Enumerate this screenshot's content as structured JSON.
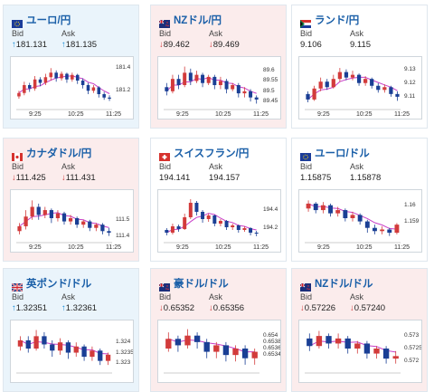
{
  "colors": {
    "up_bg": "#eaf4fb",
    "down_bg": "#fbecec",
    "flat_bg": "#ffffff",
    "title": "#1a5fa8",
    "up_arrow": "#1a8fd8",
    "down_arrow": "#d23b3b",
    "bull": "#d23b3b",
    "bear": "#1a3f95",
    "ma": "#c83fc8",
    "ma2": "#3fa3e0"
  },
  "cards": [
    {
      "title": "ユーロ/円",
      "flag": "eu-flag-icon",
      "trend": "up",
      "bid_label": "Bid",
      "ask_label": "Ask",
      "bid_arrow": "↑",
      "ask_arrow": "↑",
      "bid": "181.131",
      "ask": "181.135",
      "x_ticks": [
        "9:25",
        "10:25",
        "11:25"
      ],
      "y_ticks": [
        "181.4",
        "181.2"
      ],
      "candles": [
        {
          "o": 181.15,
          "c": 181.18,
          "h": 181.2,
          "l": 181.13
        },
        {
          "o": 181.18,
          "c": 181.25,
          "h": 181.28,
          "l": 181.16
        },
        {
          "o": 181.25,
          "c": 181.22,
          "h": 181.27,
          "l": 181.19
        },
        {
          "o": 181.22,
          "c": 181.3,
          "h": 181.33,
          "l": 181.2
        },
        {
          "o": 181.3,
          "c": 181.27,
          "h": 181.32,
          "l": 181.24
        },
        {
          "o": 181.27,
          "c": 181.32,
          "h": 181.35,
          "l": 181.25
        },
        {
          "o": 181.32,
          "c": 181.36,
          "h": 181.4,
          "l": 181.29
        },
        {
          "o": 181.36,
          "c": 181.31,
          "h": 181.38,
          "l": 181.28
        },
        {
          "o": 181.31,
          "c": 181.35,
          "h": 181.37,
          "l": 181.29
        },
        {
          "o": 181.35,
          "c": 181.3,
          "h": 181.36,
          "l": 181.27
        },
        {
          "o": 181.3,
          "c": 181.34,
          "h": 181.36,
          "l": 181.28
        },
        {
          "o": 181.34,
          "c": 181.29,
          "h": 181.35,
          "l": 181.26
        },
        {
          "o": 181.29,
          "c": 181.25,
          "h": 181.31,
          "l": 181.22
        },
        {
          "o": 181.25,
          "c": 181.2,
          "h": 181.27,
          "l": 181.17
        },
        {
          "o": 181.2,
          "c": 181.23,
          "h": 181.25,
          "l": 181.18
        },
        {
          "o": 181.23,
          "c": 181.17,
          "h": 181.24,
          "l": 181.14
        },
        {
          "o": 181.17,
          "c": 181.14,
          "h": 181.19,
          "l": 181.12
        },
        {
          "o": 181.14,
          "c": 181.13,
          "h": 181.16,
          "l": 181.11
        }
      ],
      "ylim": [
        181.05,
        181.45
      ]
    },
    {
      "title": "NZドル/円",
      "flag": "nz-flag-icon",
      "trend": "down",
      "bid_label": "Bid",
      "ask_label": "Ask",
      "bid_arrow": "↓",
      "ask_arrow": "↓",
      "bid": "89.462",
      "ask": "89.469",
      "x_ticks": [
        "9:25",
        "10:25",
        "11:25"
      ],
      "y_ticks": [
        "89.6",
        "89.55",
        "89.5",
        "89.45"
      ],
      "candles": [
        {
          "o": 89.52,
          "c": 89.5,
          "h": 89.54,
          "l": 89.48
        },
        {
          "o": 89.5,
          "c": 89.56,
          "h": 89.58,
          "l": 89.49
        },
        {
          "o": 89.56,
          "c": 89.53,
          "h": 89.58,
          "l": 89.51
        },
        {
          "o": 89.53,
          "c": 89.59,
          "h": 89.62,
          "l": 89.52
        },
        {
          "o": 89.59,
          "c": 89.55,
          "h": 89.61,
          "l": 89.53
        },
        {
          "o": 89.55,
          "c": 89.58,
          "h": 89.6,
          "l": 89.54
        },
        {
          "o": 89.58,
          "c": 89.54,
          "h": 89.59,
          "l": 89.52
        },
        {
          "o": 89.54,
          "c": 89.57,
          "h": 89.58,
          "l": 89.53
        },
        {
          "o": 89.57,
          "c": 89.53,
          "h": 89.58,
          "l": 89.51
        },
        {
          "o": 89.53,
          "c": 89.55,
          "h": 89.57,
          "l": 89.51
        },
        {
          "o": 89.55,
          "c": 89.51,
          "h": 89.56,
          "l": 89.49
        },
        {
          "o": 89.51,
          "c": 89.53,
          "h": 89.54,
          "l": 89.5
        },
        {
          "o": 89.53,
          "c": 89.49,
          "h": 89.54,
          "l": 89.47
        },
        {
          "o": 89.49,
          "c": 89.5,
          "h": 89.52,
          "l": 89.47
        },
        {
          "o": 89.5,
          "c": 89.47,
          "h": 89.51,
          "l": 89.45
        },
        {
          "o": 89.47,
          "c": 89.46,
          "h": 89.48,
          "l": 89.44
        }
      ],
      "ylim": [
        89.42,
        89.64
      ]
    },
    {
      "title": "ランド/円",
      "flag": "za-flag-icon",
      "trend": "flat",
      "bid_label": "Bid",
      "ask_label": "Ask",
      "bid_arrow": "",
      "ask_arrow": "",
      "bid": "9.106",
      "ask": "9.115",
      "x_ticks": [
        "9:25",
        "10:25",
        "11:25"
      ],
      "y_ticks": [
        "9.13",
        "9.12",
        "9.11"
      ],
      "candles": [
        {
          "o": 9.112,
          "c": 9.108,
          "h": 9.114,
          "l": 9.106
        },
        {
          "o": 9.108,
          "c": 9.116,
          "h": 9.118,
          "l": 9.107
        },
        {
          "o": 9.116,
          "c": 9.121,
          "h": 9.124,
          "l": 9.114
        },
        {
          "o": 9.121,
          "c": 9.117,
          "h": 9.123,
          "l": 9.115
        },
        {
          "o": 9.117,
          "c": 9.123,
          "h": 9.126,
          "l": 9.116
        },
        {
          "o": 9.123,
          "c": 9.128,
          "h": 9.131,
          "l": 9.121
        },
        {
          "o": 9.128,
          "c": 9.124,
          "h": 9.13,
          "l": 9.122
        },
        {
          "o": 9.124,
          "c": 9.126,
          "h": 9.129,
          "l": 9.122
        },
        {
          "o": 9.126,
          "c": 9.12,
          "h": 9.127,
          "l": 9.118
        },
        {
          "o": 9.12,
          "c": 9.123,
          "h": 9.125,
          "l": 9.118
        },
        {
          "o": 9.123,
          "c": 9.118,
          "h": 9.124,
          "l": 9.116
        },
        {
          "o": 9.118,
          "c": 9.115,
          "h": 9.12,
          "l": 9.113
        },
        {
          "o": 9.115,
          "c": 9.117,
          "h": 9.119,
          "l": 9.113
        },
        {
          "o": 9.117,
          "c": 9.112,
          "h": 9.118,
          "l": 9.11
        },
        {
          "o": 9.112,
          "c": 9.11,
          "h": 9.114,
          "l": 9.107
        }
      ],
      "ylim": [
        9.102,
        9.135
      ]
    },
    {
      "title": "カナダドル/円",
      "flag": "ca-flag-icon",
      "trend": "down",
      "bid_label": "Bid",
      "ask_label": "Ask",
      "bid_arrow": "↓",
      "ask_arrow": "↓",
      "bid": "111.425",
      "ask": "111.431",
      "x_ticks": [
        "9:25",
        "10:25",
        "11:25"
      ],
      "y_ticks": [
        "111.5",
        "111.4"
      ],
      "candles": [
        {
          "o": 111.43,
          "c": 111.46,
          "h": 111.48,
          "l": 111.41
        },
        {
          "o": 111.46,
          "c": 111.52,
          "h": 111.56,
          "l": 111.44
        },
        {
          "o": 111.52,
          "c": 111.58,
          "h": 111.62,
          "l": 111.5
        },
        {
          "o": 111.58,
          "c": 111.53,
          "h": 111.6,
          "l": 111.5
        },
        {
          "o": 111.53,
          "c": 111.56,
          "h": 111.58,
          "l": 111.51
        },
        {
          "o": 111.56,
          "c": 111.51,
          "h": 111.57,
          "l": 111.48
        },
        {
          "o": 111.51,
          "c": 111.54,
          "h": 111.56,
          "l": 111.49
        },
        {
          "o": 111.54,
          "c": 111.49,
          "h": 111.55,
          "l": 111.47
        },
        {
          "o": 111.49,
          "c": 111.51,
          "h": 111.53,
          "l": 111.47
        },
        {
          "o": 111.51,
          "c": 111.47,
          "h": 111.52,
          "l": 111.45
        },
        {
          "o": 111.47,
          "c": 111.49,
          "h": 111.5,
          "l": 111.45
        },
        {
          "o": 111.49,
          "c": 111.45,
          "h": 111.5,
          "l": 111.43
        },
        {
          "o": 111.45,
          "c": 111.47,
          "h": 111.48,
          "l": 111.43
        },
        {
          "o": 111.47,
          "c": 111.43,
          "h": 111.48,
          "l": 111.41
        },
        {
          "o": 111.43,
          "c": 111.42,
          "h": 111.45,
          "l": 111.4
        }
      ],
      "ylim": [
        111.37,
        111.65
      ]
    },
    {
      "title": "スイスフラン/円",
      "flag": "ch-flag-icon",
      "trend": "flat",
      "bid_label": "Bid",
      "ask_label": "Ask",
      "bid_arrow": "",
      "ask_arrow": "",
      "bid": "194.141",
      "ask": "194.157",
      "x_ticks": [
        "9:25",
        "10:25",
        "11:25"
      ],
      "y_ticks": [
        "194.4",
        "194.2"
      ],
      "candles": [
        {
          "o": 194.18,
          "c": 194.15,
          "h": 194.2,
          "l": 194.12
        },
        {
          "o": 194.15,
          "c": 194.22,
          "h": 194.25,
          "l": 194.13
        },
        {
          "o": 194.22,
          "c": 194.19,
          "h": 194.24,
          "l": 194.16
        },
        {
          "o": 194.19,
          "c": 194.32,
          "h": 194.36,
          "l": 194.18
        },
        {
          "o": 194.32,
          "c": 194.48,
          "h": 194.52,
          "l": 194.3
        },
        {
          "o": 194.48,
          "c": 194.38,
          "h": 194.5,
          "l": 194.34
        },
        {
          "o": 194.38,
          "c": 194.3,
          "h": 194.4,
          "l": 194.26
        },
        {
          "o": 194.3,
          "c": 194.34,
          "h": 194.36,
          "l": 194.27
        },
        {
          "o": 194.34,
          "c": 194.25,
          "h": 194.35,
          "l": 194.22
        },
        {
          "o": 194.25,
          "c": 194.28,
          "h": 194.3,
          "l": 194.22
        },
        {
          "o": 194.28,
          "c": 194.21,
          "h": 194.29,
          "l": 194.18
        },
        {
          "o": 194.21,
          "c": 194.23,
          "h": 194.25,
          "l": 194.18
        },
        {
          "o": 194.23,
          "c": 194.18,
          "h": 194.24,
          "l": 194.15
        },
        {
          "o": 194.18,
          "c": 194.2,
          "h": 194.22,
          "l": 194.16
        },
        {
          "o": 194.2,
          "c": 194.15,
          "h": 194.21,
          "l": 194.12
        },
        {
          "o": 194.15,
          "c": 194.14,
          "h": 194.17,
          "l": 194.11
        }
      ],
      "ylim": [
        194.06,
        194.56
      ]
    },
    {
      "title": "ユーロ/ドル",
      "flag": "eu-flag-icon",
      "trend": "flat",
      "bid_label": "Bid",
      "ask_label": "Ask",
      "bid_arrow": "",
      "ask_arrow": "",
      "bid": "1.15875",
      "ask": "1.15878",
      "x_ticks": [
        "9:25",
        "10:25",
        "11:25"
      ],
      "y_ticks": [
        "1.16",
        "1.159"
      ],
      "candles": [
        {
          "o": 1.1598,
          "c": 1.1601,
          "h": 1.1603,
          "l": 1.1596
        },
        {
          "o": 1.1601,
          "c": 1.1597,
          "h": 1.1602,
          "l": 1.1595
        },
        {
          "o": 1.1597,
          "c": 1.16,
          "h": 1.1602,
          "l": 1.1595
        },
        {
          "o": 1.16,
          "c": 1.1595,
          "h": 1.1601,
          "l": 1.1593
        },
        {
          "o": 1.1595,
          "c": 1.1597,
          "h": 1.1599,
          "l": 1.1593
        },
        {
          "o": 1.1597,
          "c": 1.1592,
          "h": 1.1598,
          "l": 1.159
        },
        {
          "o": 1.1592,
          "c": 1.1594,
          "h": 1.1596,
          "l": 1.159
        },
        {
          "o": 1.1594,
          "c": 1.159,
          "h": 1.1595,
          "l": 1.1588
        },
        {
          "o": 1.159,
          "c": 1.1586,
          "h": 1.1591,
          "l": 1.1583
        },
        {
          "o": 1.1586,
          "c": 1.1584,
          "h": 1.1588,
          "l": 1.1582
        },
        {
          "o": 1.1584,
          "c": 1.1585,
          "h": 1.1587,
          "l": 1.1582
        },
        {
          "o": 1.1585,
          "c": 1.1583,
          "h": 1.1586,
          "l": 1.1581
        },
        {
          "o": 1.1583,
          "c": 1.1588,
          "h": 1.1589,
          "l": 1.1582
        }
      ],
      "ylim": [
        1.1578,
        1.1606
      ]
    },
    {
      "title": "英ポンド/ドル",
      "flag": "gb-flag-icon",
      "trend": "up",
      "bid_label": "Bid",
      "ask_label": "Ask",
      "bid_arrow": "↑",
      "ask_arrow": "↑",
      "bid": "1.32351",
      "ask": "1.32361",
      "x_ticks": [],
      "y_ticks": [
        "1.324",
        "1.3235",
        "1.323"
      ],
      "candles": [
        {
          "o": 1.3238,
          "c": 1.3241,
          "h": 1.3243,
          "l": 1.3236
        },
        {
          "o": 1.3241,
          "c": 1.3237,
          "h": 1.3243,
          "l": 1.3235
        },
        {
          "o": 1.3237,
          "c": 1.3243,
          "h": 1.3246,
          "l": 1.3236
        },
        {
          "o": 1.3243,
          "c": 1.3239,
          "h": 1.3245,
          "l": 1.3237
        },
        {
          "o": 1.3239,
          "c": 1.3236,
          "h": 1.3241,
          "l": 1.3233
        },
        {
          "o": 1.3236,
          "c": 1.324,
          "h": 1.3242,
          "l": 1.3234
        },
        {
          "o": 1.324,
          "c": 1.3235,
          "h": 1.3241,
          "l": 1.3232
        },
        {
          "o": 1.3235,
          "c": 1.3238,
          "h": 1.324,
          "l": 1.3233
        },
        {
          "o": 1.3238,
          "c": 1.3233,
          "h": 1.3239,
          "l": 1.3231
        },
        {
          "o": 1.3233,
          "c": 1.3236,
          "h": 1.3238,
          "l": 1.3231
        },
        {
          "o": 1.3236,
          "c": 1.3231,
          "h": 1.3237,
          "l": 1.3229
        },
        {
          "o": 1.3231,
          "c": 1.3234,
          "h": 1.3235,
          "l": 1.3229
        }
      ],
      "ylim": [
        1.3226,
        1.3248
      ]
    },
    {
      "title": "豪ドル/ドル",
      "flag": "au-flag-icon",
      "trend": "down",
      "bid_label": "Bid",
      "ask_label": "Ask",
      "bid_arrow": "↓",
      "ask_arrow": "↓",
      "bid": "0.65352",
      "ask": "0.65356",
      "x_ticks": [],
      "y_ticks": [
        "0.654",
        "0.6538",
        "0.6536",
        "0.6534"
      ],
      "candles": [
        {
          "o": 0.6536,
          "c": 0.6539,
          "h": 0.6541,
          "l": 0.6535
        },
        {
          "o": 0.6539,
          "c": 0.6537,
          "h": 0.654,
          "l": 0.6535
        },
        {
          "o": 0.6537,
          "c": 0.654,
          "h": 0.6542,
          "l": 0.6536
        },
        {
          "o": 0.654,
          "c": 0.6538,
          "h": 0.6541,
          "l": 0.6536
        },
        {
          "o": 0.6538,
          "c": 0.6535,
          "h": 0.6539,
          "l": 0.6533
        },
        {
          "o": 0.6535,
          "c": 0.6537,
          "h": 0.6538,
          "l": 0.6533
        },
        {
          "o": 0.6537,
          "c": 0.6534,
          "h": 0.6538,
          "l": 0.6532
        },
        {
          "o": 0.6534,
          "c": 0.6536,
          "h": 0.6537,
          "l": 0.6532
        },
        {
          "o": 0.6536,
          "c": 0.6533,
          "h": 0.6537,
          "l": 0.6531
        },
        {
          "o": 0.6533,
          "c": 0.6535,
          "h": 0.6536,
          "l": 0.6531
        }
      ],
      "ylim": [
        0.6529,
        0.6543
      ]
    },
    {
      "title": "NZドル/ドル",
      "flag": "nz-flag-icon",
      "trend": "down",
      "bid_label": "Bid",
      "ask_label": "Ask",
      "bid_arrow": "↓",
      "ask_arrow": "↓",
      "bid": "0.57226",
      "ask": "0.57240",
      "x_ticks": [],
      "y_ticks": [
        "0.573",
        "0.5725",
        "0.572"
      ],
      "candles": [
        {
          "o": 0.5729,
          "c": 0.5726,
          "h": 0.5731,
          "l": 0.5724
        },
        {
          "o": 0.5726,
          "c": 0.573,
          "h": 0.5732,
          "l": 0.5725
        },
        {
          "o": 0.573,
          "c": 0.5727,
          "h": 0.5731,
          "l": 0.5725
        },
        {
          "o": 0.5727,
          "c": 0.5729,
          "h": 0.5731,
          "l": 0.5725
        },
        {
          "o": 0.5729,
          "c": 0.5725,
          "h": 0.573,
          "l": 0.5723
        },
        {
          "o": 0.5725,
          "c": 0.5727,
          "h": 0.5728,
          "l": 0.5723
        },
        {
          "o": 0.5727,
          "c": 0.5723,
          "h": 0.5728,
          "l": 0.5721
        },
        {
          "o": 0.5723,
          "c": 0.5725,
          "h": 0.5726,
          "l": 0.5721
        },
        {
          "o": 0.5725,
          "c": 0.5721,
          "h": 0.5726,
          "l": 0.5719
        },
        {
          "o": 0.5721,
          "c": 0.5722,
          "h": 0.5724,
          "l": 0.5719
        }
      ],
      "ylim": [
        0.5716,
        0.5734
      ]
    }
  ]
}
